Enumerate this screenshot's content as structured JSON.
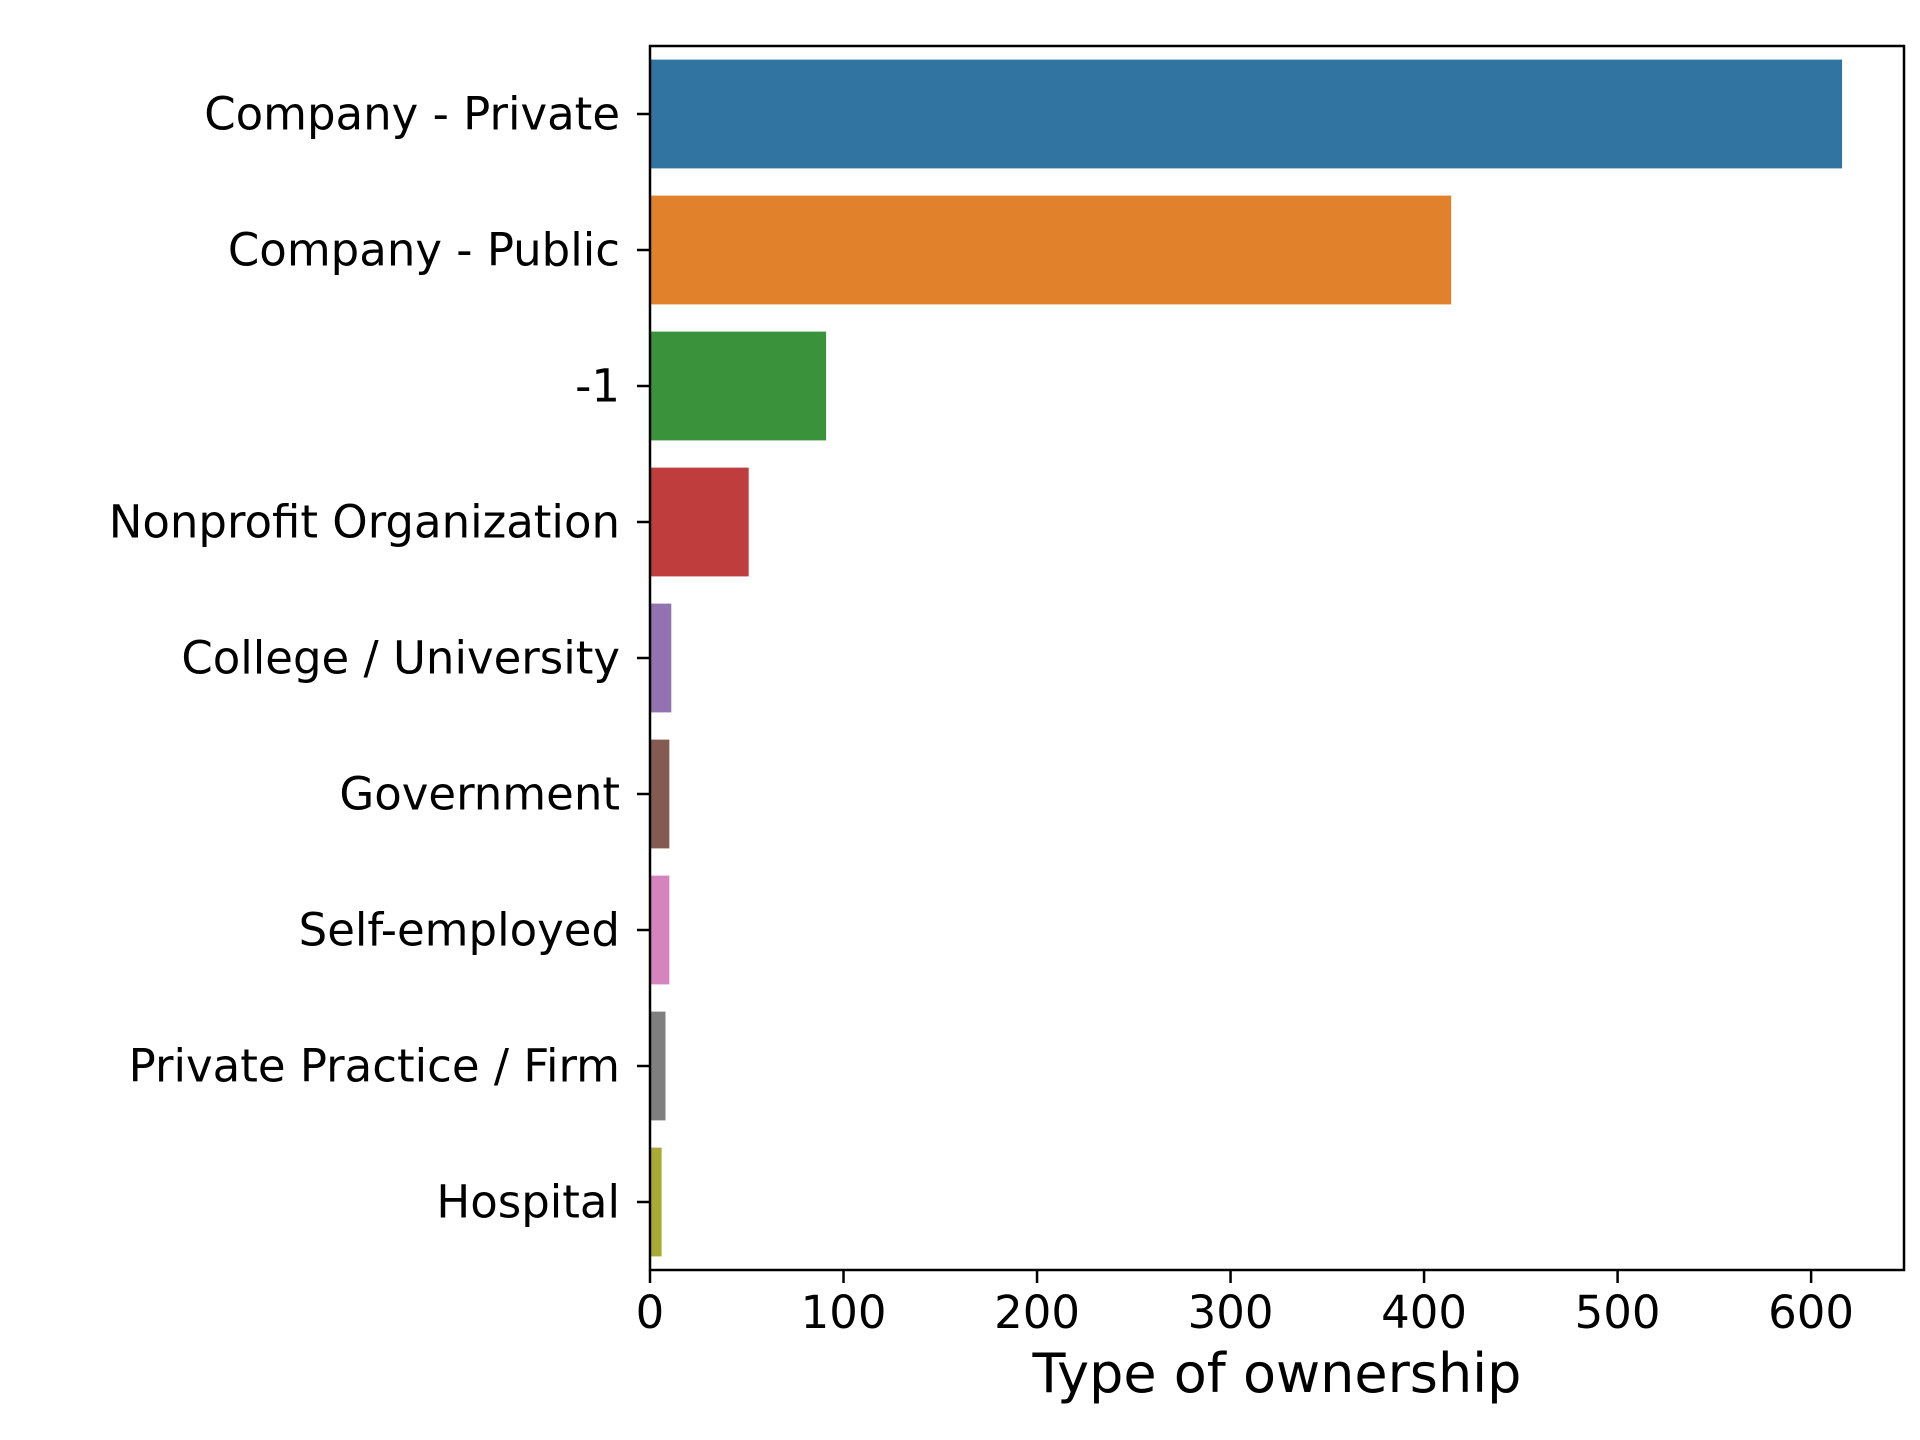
{
  "chart_data": {
    "type": "bar",
    "orientation": "horizontal",
    "categories": [
      "Company - Private",
      "Company - Public",
      "-1",
      "Nonprofit Organization",
      "College / University",
      "Government",
      "Self-employed",
      "Private Practice / Firm",
      "Hospital"
    ],
    "values": [
      616,
      414,
      91,
      51,
      11,
      10,
      10,
      8,
      6
    ],
    "colors": [
      "#3274a1",
      "#e1812c",
      "#3a923a",
      "#c03d3e",
      "#9372b2",
      "#845b53",
      "#d684bd",
      "#7f7f7f",
      "#a9aa35"
    ],
    "xlabel": "Type of ownership",
    "ylabel": "",
    "xlim": [
      0,
      648
    ],
    "xticks": [
      0,
      100,
      200,
      300,
      400,
      500,
      600
    ],
    "xtick_labels": [
      "0",
      "100",
      "200",
      "300",
      "400",
      "500",
      "600"
    ],
    "grid": false,
    "legend": "none"
  }
}
